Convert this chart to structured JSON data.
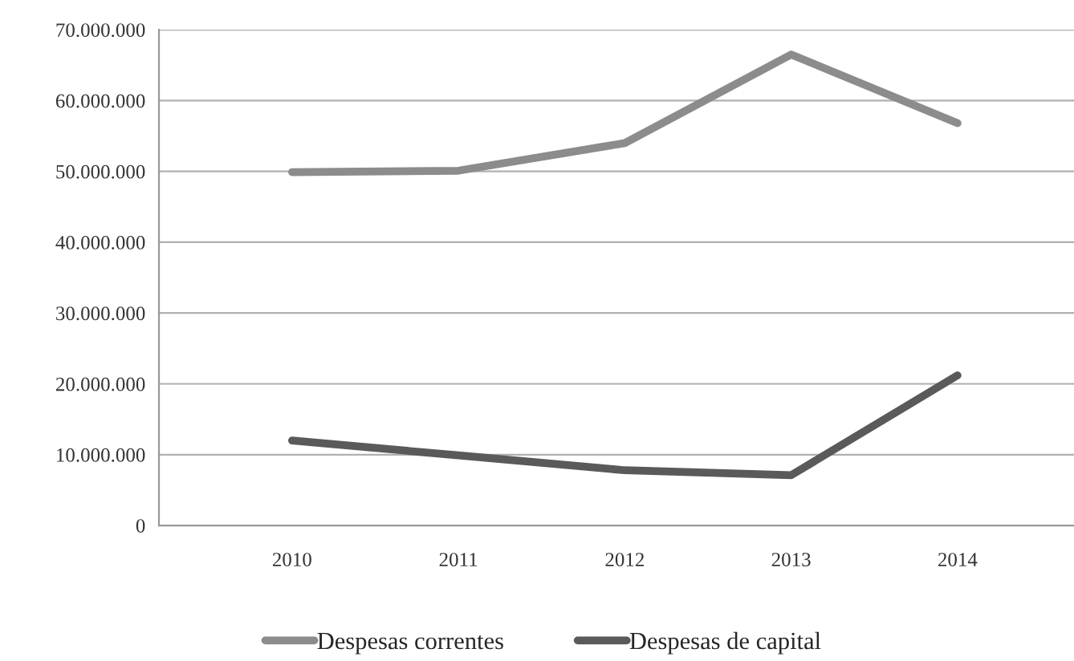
{
  "chart_data": {
    "type": "line",
    "categories": [
      "2010",
      "2011",
      "2012",
      "2013",
      "2014"
    ],
    "series": [
      {
        "name": "Despesas correntes",
        "color": "#8c8c8c",
        "values": [
          49900000,
          50100000,
          54000000,
          66500000,
          56800000
        ]
      },
      {
        "name": "Despesas de capital",
        "color": "#5a5a5a",
        "values": [
          12000000,
          9900000,
          7800000,
          7100000,
          21200000
        ]
      }
    ],
    "ylim": [
      0,
      70000000
    ],
    "yticks": [
      0,
      {
        "value": 10000000,
        "label": "10.000.000"
      },
      {
        "value": 20000000,
        "label": "20.000.000"
      },
      {
        "value": 30000000,
        "label": "30.000.000"
      },
      {
        "value": 40000000,
        "label": "40.000.000"
      },
      {
        "value": 50000000,
        "label": "50.000.000"
      },
      {
        "value": 60000000,
        "label": "60.000.000"
      },
      {
        "value": 70000000,
        "label": "70.000.000"
      }
    ],
    "grid": "y",
    "legend": "bottom",
    "marker": "none",
    "line_style": "solid"
  }
}
